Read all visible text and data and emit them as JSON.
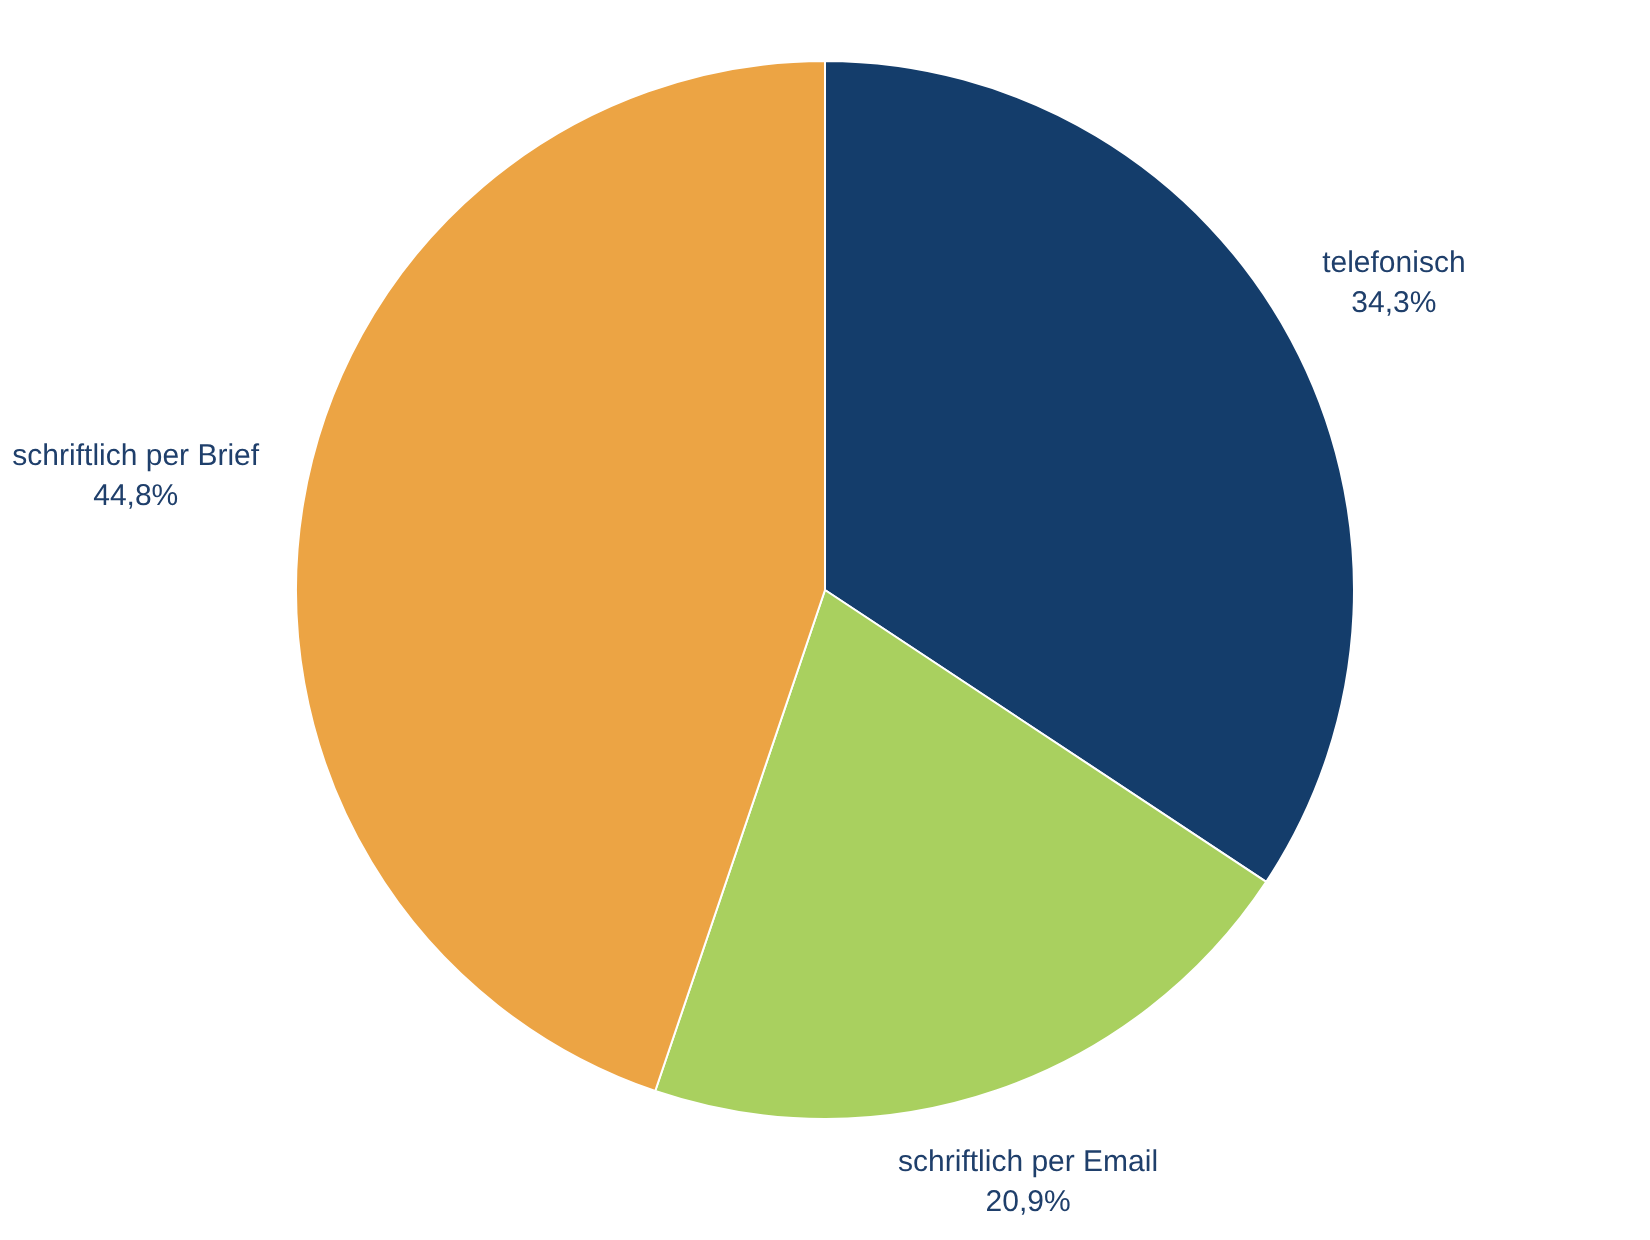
{
  "chart_data": {
    "type": "pie",
    "categories": [
      "telefonisch",
      "schriftlich per Email",
      "schriftlich per Brief"
    ],
    "values": [
      34.3,
      20.9,
      44.8
    ],
    "colors": [
      "#143d6b",
      "#a9d05f",
      "#eca444"
    ],
    "value_labels": [
      "34,3%",
      "20,9%",
      "44,8%"
    ],
    "legend": false
  }
}
